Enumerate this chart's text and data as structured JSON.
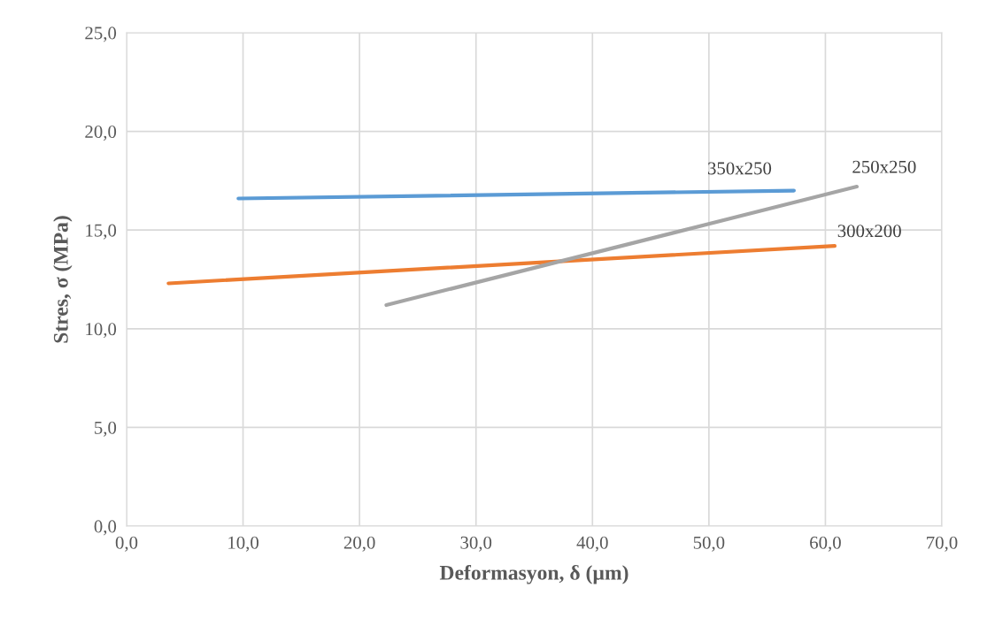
{
  "chart_data": {
    "type": "line",
    "xlabel": "Deformasyon, δ (µm)",
    "ylabel": "Stres, σ (MPa)",
    "series": [
      {
        "name": "350x250",
        "color": "#5b9bd5",
        "x": [
          9.6,
          57.3
        ],
        "values": [
          16.6,
          17.0
        ]
      },
      {
        "name": "300x200",
        "color": "#ed7d31",
        "x": [
          3.6,
          60.8
        ],
        "values": [
          12.3,
          14.2
        ]
      },
      {
        "name": "250x250",
        "color": "#a5a5a5",
        "x": [
          22.3,
          62.7
        ],
        "values": [
          11.2,
          17.2
        ]
      }
    ],
    "xlim": [
      0,
      70
    ],
    "ylim": [
      0,
      25
    ],
    "xticks": [
      {
        "value": 0,
        "label": "0,0"
      },
      {
        "value": 10,
        "label": "10,0"
      },
      {
        "value": 20,
        "label": "20,0"
      },
      {
        "value": 30,
        "label": "30,0"
      },
      {
        "value": 40,
        "label": "40,0"
      },
      {
        "value": 50,
        "label": "50,0"
      },
      {
        "value": 60,
        "label": "60,0"
      },
      {
        "value": 70,
        "label": "70,0"
      }
    ],
    "yticks": [
      {
        "value": 0,
        "label": "0,0"
      },
      {
        "value": 5,
        "label": "5,0"
      },
      {
        "value": 10,
        "label": "10,0"
      },
      {
        "value": 15,
        "label": "15,0"
      },
      {
        "value": 20,
        "label": "20,0"
      },
      {
        "value": 25,
        "label": "25,0"
      }
    ],
    "grid": true,
    "marker": "none",
    "line_style": "solid"
  }
}
